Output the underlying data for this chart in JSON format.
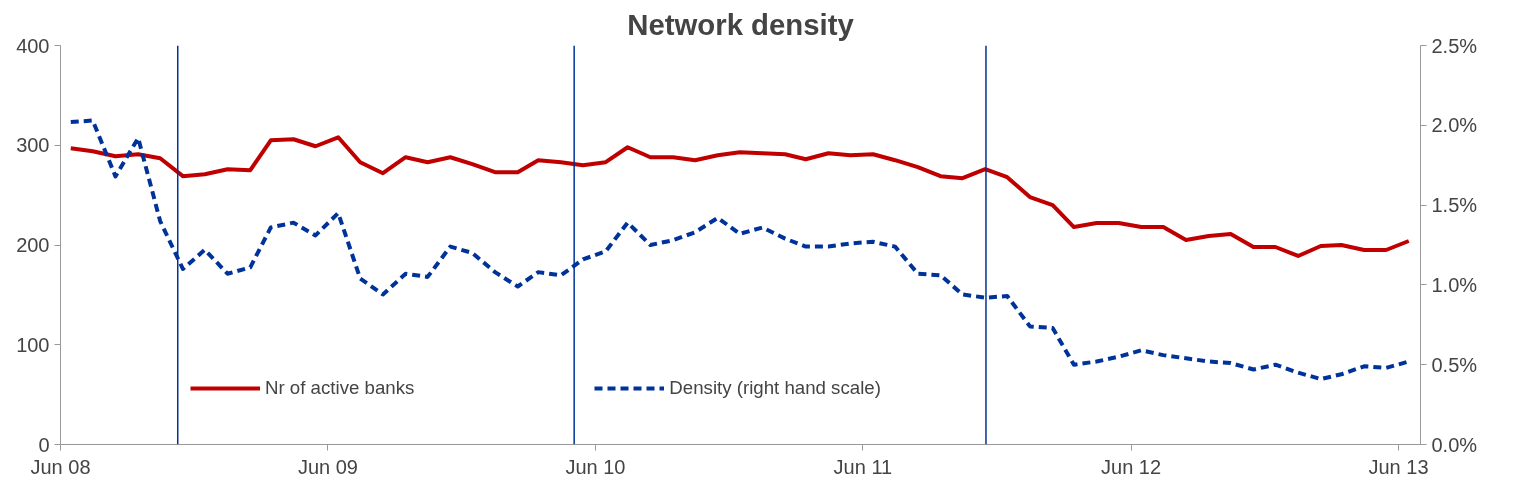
{
  "chart_data": {
    "type": "line",
    "title": "Network density",
    "x": [
      "2008-06-15",
      "2008-07-15",
      "2008-08-15",
      "2008-09-15",
      "2008-10-15",
      "2008-11-15",
      "2008-12-15",
      "2009-01-15",
      "2009-02-15",
      "2009-03-15",
      "2009-04-15",
      "2009-05-15",
      "2009-06-15",
      "2009-07-15",
      "2009-08-15",
      "2009-09-15",
      "2009-10-15",
      "2009-11-15",
      "2009-12-15",
      "2010-01-15",
      "2010-02-15",
      "2010-03-15",
      "2010-04-15",
      "2010-05-15",
      "2010-06-15",
      "2010-07-15",
      "2010-08-15",
      "2010-09-15",
      "2010-10-15",
      "2010-11-15",
      "2010-12-15",
      "2011-01-15",
      "2011-02-15",
      "2011-03-15",
      "2011-04-15",
      "2011-05-15",
      "2011-06-15",
      "2011-07-15",
      "2011-08-15",
      "2011-09-15",
      "2011-10-15",
      "2011-11-15",
      "2011-12-15",
      "2012-01-15",
      "2012-02-15",
      "2012-03-15",
      "2012-04-15",
      "2012-05-15",
      "2012-06-15",
      "2012-07-15",
      "2012-08-15",
      "2012-09-15",
      "2012-10-15",
      "2012-11-15",
      "2012-12-15",
      "2013-01-15",
      "2013-02-15",
      "2013-03-15",
      "2013-04-15",
      "2013-05-15",
      "2013-06-15"
    ],
    "series": [
      {
        "name": "Nr of active banks",
        "color": "#c00000",
        "line_style": "solid",
        "values": [
          297,
          294,
          289,
          291,
          287,
          269,
          271,
          276,
          275,
          305,
          306,
          299,
          308,
          283,
          272,
          288,
          283,
          288,
          281,
          273,
          273,
          285,
          283,
          280,
          283,
          298,
          288,
          288,
          285,
          290,
          293,
          292,
          291,
          286,
          292,
          290,
          291,
          285,
          278,
          269,
          267,
          276,
          268,
          248,
          240,
          218,
          222,
          222,
          218,
          218,
          205,
          209,
          211,
          198,
          198,
          189,
          199,
          200,
          195,
          195,
          204
        ]
      },
      {
        "name": "Density (right hand scale)",
        "color": "#003399",
        "line_style": "dashed",
        "axis": "y2",
        "values": [
          2.02,
          2.03,
          1.68,
          1.92,
          1.4,
          1.1,
          1.22,
          1.07,
          1.11,
          1.36,
          1.39,
          1.31,
          1.45,
          1.04,
          0.94,
          1.07,
          1.05,
          1.24,
          1.2,
          1.08,
          0.99,
          1.08,
          1.06,
          1.16,
          1.21,
          1.39,
          1.25,
          1.28,
          1.33,
          1.42,
          1.32,
          1.36,
          1.29,
          1.24,
          1.24,
          1.26,
          1.27,
          1.24,
          1.07,
          1.06,
          0.94,
          0.92,
          0.93,
          0.74,
          0.73,
          0.5,
          0.52,
          0.55,
          0.59,
          0.56,
          0.54,
          0.52,
          0.51,
          0.47,
          0.5,
          0.45,
          0.41,
          0.44,
          0.49,
          0.48,
          0.52
        ]
      }
    ],
    "xlim": [
      "2008-06",
      "2013-07"
    ],
    "xticks": [
      {
        "value": "2008-06",
        "label": "Jun 08"
      },
      {
        "value": "2009-06",
        "label": "Jun 09"
      },
      {
        "value": "2010-06",
        "label": "Jun 10"
      },
      {
        "value": "2011-06",
        "label": "Jun 11"
      },
      {
        "value": "2012-06",
        "label": "Jun 12"
      },
      {
        "value": "2013-06",
        "label": "Jun 13"
      }
    ],
    "ylim": [
      0,
      400
    ],
    "yticks": [
      0,
      100,
      200,
      300,
      400
    ],
    "y2lim": [
      0,
      2.5
    ],
    "y2ticks": [
      {
        "value": 0,
        "label": "0.0%"
      },
      {
        "value": 0.5,
        "label": "0.5%"
      },
      {
        "value": 1,
        "label": "1.0%"
      },
      {
        "value": 1.5,
        "label": "1.5%"
      },
      {
        "value": 2,
        "label": "2.0%"
      },
      {
        "value": 2.5,
        "label": "2.5%"
      }
    ],
    "ref_lines": [
      {
        "axis": "x",
        "value": "2008-11-08",
        "color": "#003399"
      },
      {
        "axis": "x",
        "value": "2010-05-03",
        "color": "#003399"
      },
      {
        "axis": "x",
        "value": "2011-11-16",
        "color": "#003399"
      }
    ],
    "grid": false,
    "legend": "bottom"
  }
}
